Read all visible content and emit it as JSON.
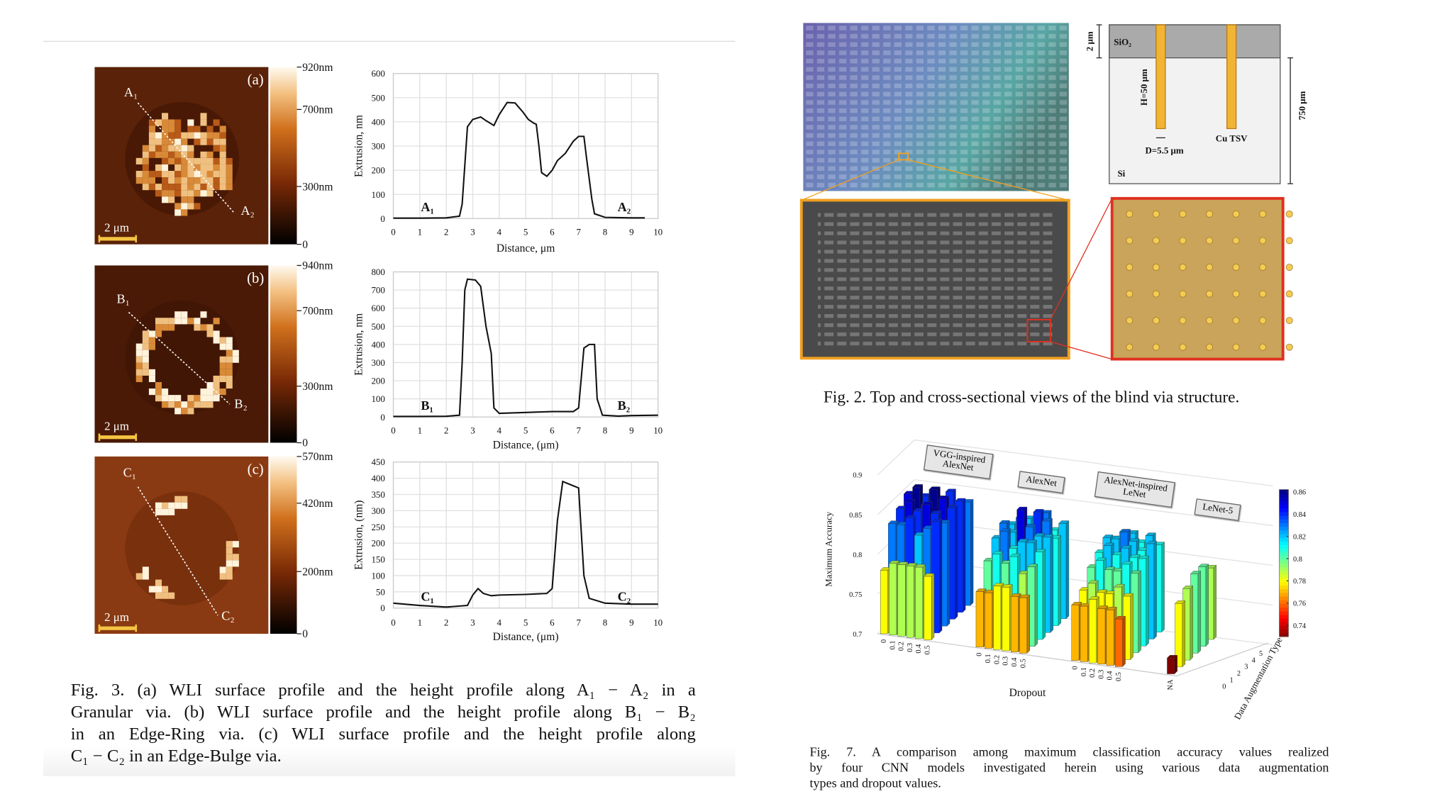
{
  "chart_data": [
    {
      "type": "line",
      "ylabel": "Extrusion, nm",
      "xlabel": "Distance, μm",
      "x": [
        0,
        1,
        2,
        2.5,
        2.6,
        2.8,
        3,
        3.3,
        3.5,
        3.8,
        4,
        4.3,
        4.6,
        4.9,
        5.1,
        5.3,
        5.4,
        5.5,
        5.6,
        5.8,
        6,
        6.2,
        6.5,
        6.8,
        7,
        7.2,
        7.3,
        7.5,
        7.6,
        8,
        9,
        9.5
      ],
      "values": [
        2,
        2,
        3,
        10,
        60,
        380,
        410,
        420,
        405,
        385,
        430,
        480,
        478,
        440,
        410,
        395,
        390,
        300,
        190,
        175,
        200,
        240,
        270,
        320,
        340,
        340,
        250,
        80,
        20,
        5,
        3,
        3
      ],
      "xlim": [
        0,
        10
      ],
      "xticks": [
        0,
        1,
        2,
        3,
        4,
        5,
        6,
        7,
        8,
        9,
        10
      ],
      "ylim": [
        0,
        600
      ],
      "yticks": [
        0,
        100,
        200,
        300,
        400,
        500,
        600
      ],
      "grid": true,
      "color": "#111"
    },
    {
      "type": "line",
      "ylabel": "Extrusion, nm",
      "xlabel": "Distance, (μm)",
      "x": [
        0,
        1,
        2,
        2.5,
        2.6,
        2.7,
        2.8,
        3.1,
        3.3,
        3.5,
        3.7,
        3.8,
        4,
        5,
        6,
        6.8,
        7,
        7.2,
        7.4,
        7.6,
        7.7,
        7.9,
        8.5,
        9,
        10
      ],
      "values": [
        3,
        3,
        4,
        10,
        300,
        700,
        760,
        755,
        720,
        500,
        350,
        50,
        20,
        25,
        30,
        30,
        50,
        380,
        400,
        400,
        100,
        10,
        5,
        8,
        10
      ],
      "xlim": [
        0,
        10
      ],
      "xticks": [
        0,
        1,
        2,
        3,
        4,
        5,
        6,
        7,
        8,
        9,
        10
      ],
      "ylim": [
        0,
        800
      ],
      "yticks": [
        0,
        100,
        200,
        300,
        400,
        500,
        600,
        700,
        800
      ],
      "grid": true,
      "color": "#111"
    },
    {
      "type": "line",
      "ylabel": "Extrusion, (nm)",
      "xlabel": "Distance, (μm)",
      "x": [
        0,
        1,
        2,
        2.8,
        3,
        3.2,
        3.4,
        3.7,
        4,
        5,
        5.8,
        6,
        6.2,
        6.4,
        6.7,
        7,
        7.2,
        7.4,
        8,
        9,
        10
      ],
      "values": [
        15,
        8,
        3,
        8,
        40,
        60,
        45,
        38,
        40,
        42,
        45,
        60,
        270,
        390,
        380,
        370,
        100,
        30,
        15,
        12,
        12
      ],
      "xlim": [
        0,
        10
      ],
      "xticks": [
        0,
        1,
        2,
        3,
        4,
        5,
        6,
        7,
        8,
        9,
        10
      ],
      "ylim": [
        0,
        450
      ],
      "yticks": [
        0,
        50,
        100,
        150,
        200,
        250,
        300,
        350,
        400,
        450
      ],
      "grid": true,
      "color": "#111"
    },
    {
      "type": "bar3d",
      "zlabel": "Maximum Accuracy",
      "xlabel": "Dropout",
      "ylabel": "Data Augmentation Type",
      "zlim": [
        0.7,
        0.9
      ],
      "zticks": [
        0.7,
        0.75,
        0.8,
        0.85,
        0.9
      ],
      "aug_ticks": [
        0,
        1,
        2,
        3,
        4,
        5
      ],
      "colorbar_lim": [
        0.73,
        0.862
      ],
      "colorbar_ticks": [
        0.74,
        0.76,
        0.78,
        0.8,
        0.82,
        0.84,
        0.86
      ],
      "groups": [
        {
          "name": "VGG-inspired\nAlexNet",
          "categories": [
            "0",
            "0.1",
            "0.2",
            "0.3",
            "0.4",
            "0.5"
          ],
          "values": [
            [
              0.78,
              0.79,
              0.79,
              0.79,
              0.79,
              0.78
            ],
            [
              0.83,
              0.83,
              0.84,
              0.82,
              0.83,
              0.84
            ],
            [
              0.84,
              0.85,
              0.84,
              0.85,
              0.84,
              0.83
            ],
            [
              0.85,
              0.86,
              0.84,
              0.86,
              0.85,
              0.84
            ],
            [
              0.83,
              0.84,
              0.85,
              0.84,
              0.83,
              0.84
            ],
            [
              0.82,
              0.83,
              0.83,
              0.84,
              0.82,
              0.83
            ]
          ]
        },
        {
          "name": "AlexNet",
          "categories": [
            "0",
            "0.1",
            "0.2",
            "0.3",
            "0.4",
            "0.5"
          ],
          "values": [
            [
              0.77,
              0.77,
              0.78,
              0.78,
              0.77,
              0.77
            ],
            [
              0.8,
              0.81,
              0.8,
              0.81,
              0.79,
              0.8
            ],
            [
              0.82,
              0.83,
              0.81,
              0.82,
              0.82,
              0.81
            ],
            [
              0.83,
              0.82,
              0.85,
              0.83,
              0.82,
              0.82
            ],
            [
              0.82,
              0.83,
              0.82,
              0.84,
              0.83,
              0.81
            ],
            [
              0.81,
              0.82,
              0.82,
              0.83,
              0.81,
              0.82
            ]
          ]
        },
        {
          "name": "AlexNet-inspired\nLeNet",
          "categories": [
            "0",
            "0.1",
            "0.2",
            "0.3",
            "0.4",
            "0.5"
          ],
          "values": [
            [
              0.77,
              0.77,
              0.78,
              0.77,
              0.77,
              0.76
            ],
            [
              0.78,
              0.79,
              0.78,
              0.78,
              0.79,
              0.78
            ],
            [
              0.8,
              0.81,
              0.8,
              0.8,
              0.81,
              0.8
            ],
            [
              0.81,
              0.82,
              0.81,
              0.82,
              0.81,
              0.81
            ],
            [
              0.82,
              0.82,
              0.83,
              0.82,
              0.81,
              0.82
            ],
            [
              0.81,
              0.82,
              0.82,
              0.81,
              0.82,
              0.81
            ]
          ]
        },
        {
          "name": "LeNet-5",
          "categories": [
            "NA"
          ],
          "values": [
            [
              0.72
            ],
            [
              0.78
            ],
            [
              0.79
            ],
            [
              0.8
            ],
            [
              0.8
            ],
            [
              0.79
            ]
          ]
        }
      ]
    }
  ],
  "fig3": {
    "panels": [
      {
        "tag": "(a)",
        "start": "A₁",
        "end": "A₂",
        "scale": "2 μm",
        "colorbar_lim": [
          0,
          920
        ],
        "colorbar_ticks": [
          {
            "value": 920,
            "label": "920nm"
          },
          {
            "value": 700,
            "label": "700nm"
          },
          {
            "value": 300,
            "label": "300nm"
          },
          0
        ]
      },
      {
        "tag": "(b)",
        "start": "B₁",
        "end": "B₂",
        "scale": "2 μm",
        "colorbar_lim": [
          0,
          940
        ],
        "colorbar_ticks": [
          {
            "value": 940,
            "label": "940nm"
          },
          {
            "value": 700,
            "label": "700nm"
          },
          {
            "value": 300,
            "label": "300nm"
          },
          0
        ]
      },
      {
        "tag": "(c)",
        "start": "C₁",
        "end": "C₂",
        "scale": "2 μm",
        "colorbar_lim": [
          0,
          570
        ],
        "colorbar_ticks": [
          {
            "value": 570,
            "label": "570nm"
          },
          {
            "value": 420,
            "label": "420nm"
          },
          {
            "value": 200,
            "label": "200nm"
          },
          0
        ]
      }
    ],
    "caption": [
      "Fig. 3.  (a) WLI surface profile and the height profile along A₁ − A₂ in a",
      "Granular via. (b) WLI surface profile and the height profile along B₁ − B₂",
      "in an Edge-Ring via. (c) WLI surface profile and the height profile along",
      "C₁ − C₂ in an Edge-Bulge via."
    ]
  },
  "fig2": {
    "sio2": "SiO₂",
    "thickness": "2 μm",
    "height": "H=50 μm",
    "diameter": "D=5.5 μm",
    "tsv": "Cu TSV",
    "si": "Si",
    "wafer": "750 μm",
    "caption": "Fig. 2.  Top and cross-sectional views of the blind via structure."
  },
  "fig7": {
    "caption": [
      "Fig. 7.  A comparison among maximum classification accuracy values realized",
      "by four CNN models investigated herein using various data augmentation",
      "types and dropout values."
    ]
  }
}
